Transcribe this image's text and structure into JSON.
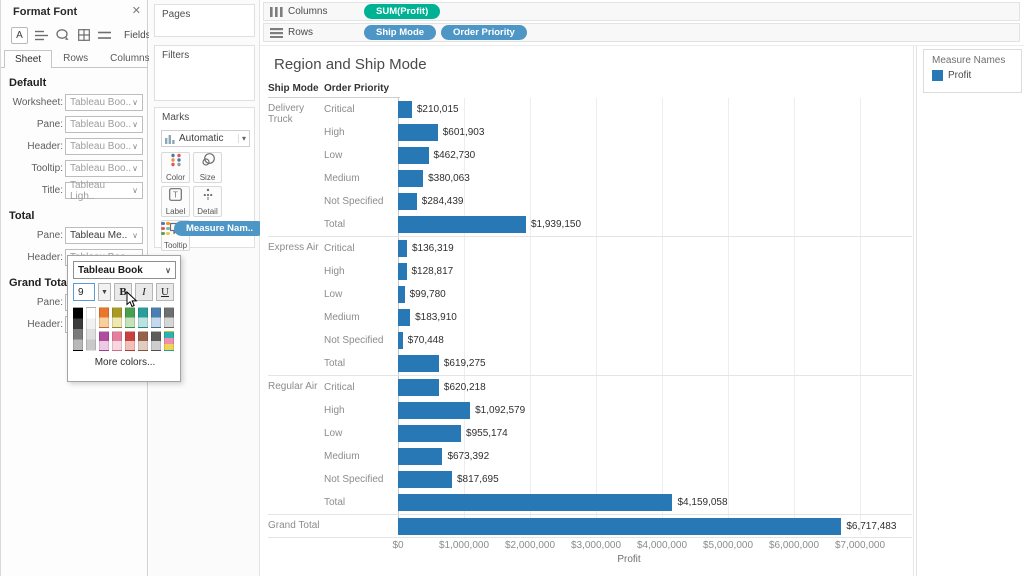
{
  "colors": {
    "bar": "#2878b5",
    "pill_green": "#00b294",
    "pill_blue": "#4e96c6"
  },
  "format_panel": {
    "title": "Format Font",
    "fields_label": "Fields",
    "tabs": [
      "Sheet",
      "Rows",
      "Columns"
    ],
    "active_tab": "Sheet",
    "sections": [
      {
        "heading": "Default",
        "rows": [
          {
            "label": "Worksheet:",
            "value": "Tableau Boo..",
            "dark": false
          },
          {
            "label": "Pane:",
            "value": "Tableau Boo..",
            "dark": false
          },
          {
            "label": "Header:",
            "value": "Tableau Boo..",
            "dark": false
          },
          {
            "label": "Tooltip:",
            "value": "Tableau Boo..",
            "dark": false
          },
          {
            "label": "Title:",
            "value": "Tableau Ligh..",
            "dark": false
          }
        ]
      },
      {
        "heading": "Total",
        "rows": [
          {
            "label": "Pane:",
            "value": "Tableau Me..",
            "dark": true
          },
          {
            "label": "Header:",
            "value": "Tableau Boo..",
            "dark": false
          }
        ]
      },
      {
        "heading": "Grand Total",
        "rows": [
          {
            "label": "Pane:",
            "value": "",
            "dark": false
          },
          {
            "label": "Header:",
            "value": "",
            "dark": false
          }
        ]
      }
    ],
    "font_popup": {
      "font_name": "Tableau Book",
      "size_value": "9",
      "bold_label": "B",
      "italic_label": "I",
      "underline_label": "U",
      "more_colors_label": "More colors...",
      "palette": {
        "gray_columns": [
          [
            "#000000",
            "#3a3a3a",
            "#7a7a7a",
            "#b8b8b8"
          ],
          [
            "#ffffff",
            "#f1f1f1",
            "#dedede",
            "#c9c9c9"
          ]
        ],
        "color_rows": [
          [
            [
              "#e8762d",
              "#f9cf9e"
            ],
            [
              "#a89a27",
              "#eee8b2"
            ],
            [
              "#48a04e",
              "#c5e2bd"
            ],
            [
              "#2b9c9c",
              "#bde3e0"
            ],
            [
              "#4a7fb0",
              "#c5d8ec"
            ],
            [
              "#6f6f6f",
              "#d6d6d6"
            ]
          ],
          [
            [
              "#b14d9e",
              "#ecc9e4"
            ],
            [
              "#e57f9d",
              "#fad7e0"
            ],
            [
              "#c94040",
              "#f3bfb9"
            ],
            [
              "#97604a",
              "#e1ccc2"
            ],
            [
              "#5c5c5c",
              "#cdcdcd"
            ],
            [
              "#2cb3ad",
              "#f08fb4",
              "#f0d455"
            ]
          ]
        ]
      }
    }
  },
  "cards": {
    "pages_label": "Pages",
    "filters_label": "Filters",
    "marks": {
      "title": "Marks",
      "mark_type": "Automatic",
      "buttons": [
        {
          "label": "Color",
          "icon": "color-dots-icon"
        },
        {
          "label": "Size",
          "icon": "size-circles-icon"
        },
        {
          "label": "Label",
          "icon": "label-t-icon"
        },
        {
          "label": "Detail",
          "icon": "detail-dots-icon"
        },
        {
          "label": "Tooltip",
          "icon": "tooltip-bubble-icon"
        }
      ],
      "pill": "Measure Nam.."
    }
  },
  "shelves": {
    "columns": {
      "label": "Columns",
      "pills": [
        {
          "text": "SUM(Profit)",
          "color": "#00b294"
        }
      ]
    },
    "rows": {
      "label": "Rows",
      "pills": [
        {
          "text": "Ship Mode",
          "color": "#4e96c6"
        },
        {
          "text": "Order Priority",
          "color": "#4e96c6"
        }
      ]
    }
  },
  "legend": {
    "title": "Measure Names",
    "items": [
      {
        "label": "Profit",
        "color": "#2878b5"
      }
    ]
  },
  "chart_data": {
    "type": "bar",
    "title": "Region and Ship Mode",
    "col_headers": [
      "Ship Mode",
      "Order Priority"
    ],
    "xlabel": "Profit",
    "xlim": [
      0,
      7000000
    ],
    "axis_ticks": [
      "$0",
      "$1,000,000",
      "$2,000,000",
      "$3,000,000",
      "$4,000,000",
      "$5,000,000",
      "$6,000,000",
      "$7,000,000"
    ],
    "bar_color": "#2878b5",
    "grid": true,
    "groups": [
      {
        "ship_mode": "Delivery Truck",
        "rows": [
          {
            "label": "Critical",
            "value": 210015,
            "display": "$210,015"
          },
          {
            "label": "High",
            "value": 601903,
            "display": "$601,903"
          },
          {
            "label": "Low",
            "value": 462730,
            "display": "$462,730"
          },
          {
            "label": "Medium",
            "value": 380063,
            "display": "$380,063"
          },
          {
            "label": "Not Specified",
            "value": 284439,
            "display": "$284,439"
          },
          {
            "label": "Total",
            "value": 1939150,
            "display": "$1,939,150"
          }
        ]
      },
      {
        "ship_mode": "Express Air",
        "rows": [
          {
            "label": "Critical",
            "value": 136319,
            "display": "$136,319"
          },
          {
            "label": "High",
            "value": 128817,
            "display": "$128,817"
          },
          {
            "label": "Low",
            "value": 99780,
            "display": "$99,780"
          },
          {
            "label": "Medium",
            "value": 183910,
            "display": "$183,910"
          },
          {
            "label": "Not Specified",
            "value": 70448,
            "display": "$70,448"
          },
          {
            "label": "Total",
            "value": 619275,
            "display": "$619,275"
          }
        ]
      },
      {
        "ship_mode": "Regular Air",
        "rows": [
          {
            "label": "Critical",
            "value": 620218,
            "display": "$620,218"
          },
          {
            "label": "High",
            "value": 1092579,
            "display": "$1,092,579"
          },
          {
            "label": "Low",
            "value": 955174,
            "display": "$955,174"
          },
          {
            "label": "Medium",
            "value": 673392,
            "display": "$673,392"
          },
          {
            "label": "Not Specified",
            "value": 817695,
            "display": "$817,695"
          },
          {
            "label": "Total",
            "value": 4159058,
            "display": "$4,159,058"
          }
        ]
      }
    ],
    "grand_total": {
      "label": "Grand Total",
      "value": 6717483,
      "display": "$6,717,483"
    }
  }
}
